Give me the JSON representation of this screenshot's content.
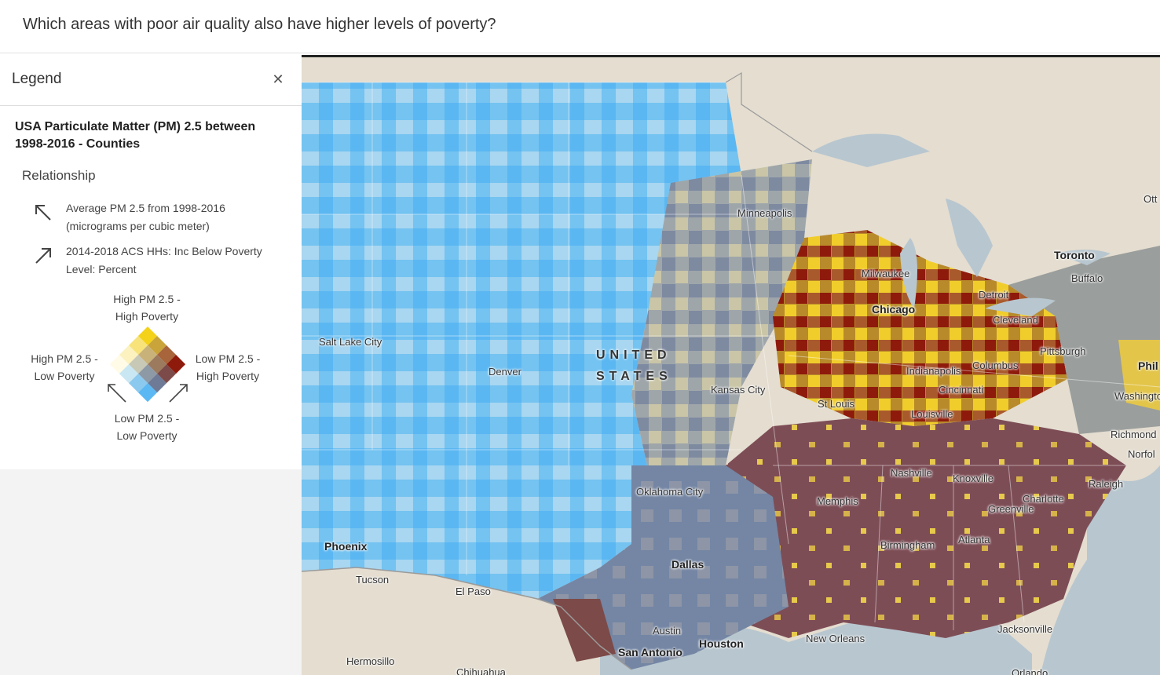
{
  "header": {
    "question": "Which areas with poor air quality also have higher levels of poverty?"
  },
  "legend": {
    "title": "Legend",
    "close_icon": "close-icon",
    "layer_title": "USA Particulate Matter (PM) 2.5 between 1998-2016 - Counties",
    "relationship_label": "Relationship",
    "fields": [
      {
        "icon": "arrow-up-left-icon",
        "line1": "Average PM 2.5 from 1998-2016",
        "line2": "(micrograms per cubic meter)"
      },
      {
        "icon": "arrow-up-right-icon",
        "line1": "2014-2018 ACS HHs: Inc Below Poverty",
        "line2": "Level: Percent"
      }
    ],
    "labels": {
      "top_1": "High PM 2.5 -",
      "top_2": "High Poverty",
      "left_1": "High PM 2.5 -",
      "left_2": "Low Poverty",
      "right_1": "Low PM 2.5 -",
      "right_2": "High Poverty",
      "bottom_1": "Low PM 2.5 -",
      "bottom_2": "Low Poverty"
    },
    "bivariate_colors": [
      [
        "#f4d21a",
        "#c9a43a",
        "#a8643a",
        "#8e1a0c"
      ],
      [
        "#f7e37a",
        "#c8b27a",
        "#9b7a5e",
        "#7c4a48"
      ],
      [
        "#fbf2c0",
        "#c7c8b6",
        "#8e99a6",
        "#6e7a96"
      ],
      [
        "#fffbe6",
        "#c9e7f3",
        "#8cc9ee",
        "#5cb8f3"
      ]
    ]
  },
  "map": {
    "country_label": [
      "UNITED",
      "STATES"
    ],
    "cities": [
      {
        "name": "Minneapolis",
        "big": false
      },
      {
        "name": "Milwaukee",
        "big": false
      },
      {
        "name": "Chicago",
        "big": true
      },
      {
        "name": "Detroit",
        "big": false
      },
      {
        "name": "Toronto",
        "big": true
      },
      {
        "name": "Buffalo",
        "big": false
      },
      {
        "name": "Cleveland",
        "big": false
      },
      {
        "name": "Pittsburgh",
        "big": false
      },
      {
        "name": "Columbus",
        "big": false
      },
      {
        "name": "Indianapolis",
        "big": false
      },
      {
        "name": "Cincinnati",
        "big": false
      },
      {
        "name": "St Louis",
        "big": false
      },
      {
        "name": "Louisville",
        "big": false
      },
      {
        "name": "Kansas City",
        "big": false
      },
      {
        "name": "Salt Lake City",
        "big": false
      },
      {
        "name": "Denver",
        "big": false
      },
      {
        "name": "Phil",
        "big": true
      },
      {
        "name": "Washington",
        "big": false
      },
      {
        "name": "Richmond",
        "big": false
      },
      {
        "name": "Norfol",
        "big": false
      },
      {
        "name": "Nashville",
        "big": false
      },
      {
        "name": "Knoxville",
        "big": false
      },
      {
        "name": "Raleigh",
        "big": false
      },
      {
        "name": "Charlotte",
        "big": false
      },
      {
        "name": "Greenville",
        "big": false
      },
      {
        "name": "Memphis",
        "big": false
      },
      {
        "name": "Oklahoma City",
        "big": false
      },
      {
        "name": "Birmingham",
        "big": false
      },
      {
        "name": "Atlanta",
        "big": false
      },
      {
        "name": "Phoenix",
        "big": true
      },
      {
        "name": "Dallas",
        "big": true
      },
      {
        "name": "Tucson",
        "big": false
      },
      {
        "name": "El Paso",
        "big": false
      },
      {
        "name": "Austin",
        "big": false
      },
      {
        "name": "Houston",
        "big": true
      },
      {
        "name": "San Antonio",
        "big": true
      },
      {
        "name": "New Orleans",
        "big": false
      },
      {
        "name": "Jacksonville",
        "big": false
      },
      {
        "name": "Hermosillo",
        "big": false
      },
      {
        "name": "Chihuahua",
        "big": false
      },
      {
        "name": "Orlando",
        "big": false
      },
      {
        "name": "Ott",
        "big": false
      }
    ]
  }
}
